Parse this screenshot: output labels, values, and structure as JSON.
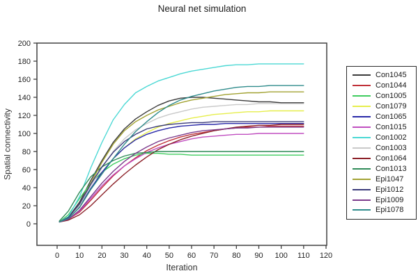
{
  "figure": {
    "title": "Neural net simulation",
    "xlabel": "Iteration",
    "ylabel": "Spatial connectivity"
  },
  "chart_data": {
    "type": "line",
    "title": "Neural net simulation",
    "xlabel": "Iteration",
    "ylabel": "Spatial connectivity",
    "xlim": [
      -9,
      121
    ],
    "ylim": [
      -24,
      200
    ],
    "x_ticks": [
      0,
      10,
      20,
      30,
      40,
      50,
      60,
      70,
      80,
      90,
      100,
      110,
      120
    ],
    "y_ticks": [
      0,
      20,
      40,
      60,
      80,
      100,
      120,
      140,
      160,
      180,
      200
    ],
    "grid": false,
    "legend_position": "right-outside",
    "axis_color": "#404040",
    "x": [
      1,
      5,
      10,
      15,
      20,
      25,
      30,
      35,
      40,
      45,
      50,
      55,
      60,
      65,
      70,
      75,
      80,
      85,
      90,
      95,
      100,
      105,
      110
    ],
    "series": [
      {
        "name": "Con1045",
        "color": "#3a3a3a",
        "values": [
          2,
          7,
          24,
          48,
          70,
          90,
          105,
          116,
          124,
          131,
          136,
          139,
          140,
          140,
          139,
          138,
          137,
          136,
          135,
          135,
          134,
          134,
          134
        ]
      },
      {
        "name": "Con1044",
        "color": "#c03038",
        "values": [
          2,
          5,
          13,
          26,
          40,
          53,
          64,
          73,
          81,
          87,
          92,
          96,
          99,
          101,
          103,
          105,
          106,
          107,
          107,
          108,
          108,
          108,
          108
        ]
      },
      {
        "name": "Con1005",
        "color": "#3ecc5e",
        "values": [
          2,
          10,
          28,
          45,
          57,
          66,
          72,
          76,
          78,
          78,
          77,
          77,
          76,
          76,
          76,
          76,
          76,
          76,
          76,
          76,
          76,
          76,
          76
        ]
      },
      {
        "name": "Con1079",
        "color": "#e6ee4a",
        "values": [
          2,
          6,
          18,
          38,
          56,
          72,
          84,
          94,
          101,
          107,
          111,
          114,
          117,
          119,
          121,
          122,
          123,
          124,
          124,
          125,
          125,
          125,
          125
        ]
      },
      {
        "name": "Con1065",
        "color": "#2828a8",
        "values": [
          2,
          6,
          19,
          39,
          57,
          72,
          84,
          93,
          99,
          103,
          106,
          108,
          109,
          110,
          110,
          111,
          111,
          111,
          111,
          111,
          111,
          111,
          111
        ]
      },
      {
        "name": "Con1015",
        "color": "#c04ec0",
        "values": [
          2,
          5,
          14,
          28,
          42,
          54,
          64,
          72,
          79,
          84,
          88,
          91,
          94,
          96,
          97,
          98,
          99,
          99,
          100,
          100,
          100,
          100,
          100
        ]
      },
      {
        "name": "Con1002",
        "color": "#4ad8d4",
        "values": [
          2,
          8,
          30,
          62,
          90,
          115,
          132,
          145,
          152,
          158,
          162,
          166,
          169,
          171,
          173,
          175,
          176,
          176,
          177,
          177,
          177,
          177,
          177
        ]
      },
      {
        "name": "Con1003",
        "color": "#c9c9c9",
        "values": [
          2,
          6,
          20,
          42,
          62,
          80,
          94,
          104,
          111,
          117,
          121,
          124,
          127,
          129,
          130,
          131,
          132,
          132,
          133,
          133,
          133,
          133,
          133
        ]
      },
      {
        "name": "Con1064",
        "color": "#8c2028",
        "values": [
          2,
          4,
          10,
          20,
          32,
          44,
          55,
          65,
          74,
          82,
          88,
          93,
          97,
          100,
          103,
          105,
          107,
          108,
          109,
          109,
          110,
          110,
          110
        ]
      },
      {
        "name": "Con1013",
        "color": "#2e8b57",
        "values": [
          3,
          14,
          35,
          52,
          63,
          70,
          75,
          78,
          79,
          80,
          80,
          80,
          80,
          80,
          80,
          80,
          80,
          80,
          80,
          80,
          80,
          80,
          80
        ]
      },
      {
        "name": "Epi1047",
        "color": "#a2a232",
        "values": [
          2,
          7,
          22,
          45,
          68,
          88,
          103,
          113,
          120,
          126,
          130,
          134,
          137,
          139,
          141,
          143,
          144,
          145,
          145,
          146,
          146,
          146,
          146
        ]
      },
      {
        "name": "Epi1012",
        "color": "#3a3a7a",
        "values": [
          2,
          7,
          22,
          44,
          63,
          79,
          91,
          99,
          105,
          108,
          110,
          111,
          112,
          112,
          113,
          113,
          113,
          113,
          113,
          113,
          113,
          113,
          113
        ]
      },
      {
        "name": "Epi1009",
        "color": "#7c3a8c",
        "values": [
          2,
          5,
          15,
          30,
          45,
          58,
          69,
          78,
          85,
          91,
          95,
          98,
          101,
          103,
          104,
          105,
          106,
          106,
          107,
          107,
          107,
          107,
          107
        ]
      },
      {
        "name": "Epi1078",
        "color": "#2e8b8b",
        "values": [
          2,
          6,
          18,
          38,
          55,
          72,
          88,
          102,
          113,
          123,
          131,
          137,
          141,
          144,
          147,
          149,
          151,
          152,
          152,
          153,
          153,
          153,
          153
        ]
      }
    ]
  }
}
